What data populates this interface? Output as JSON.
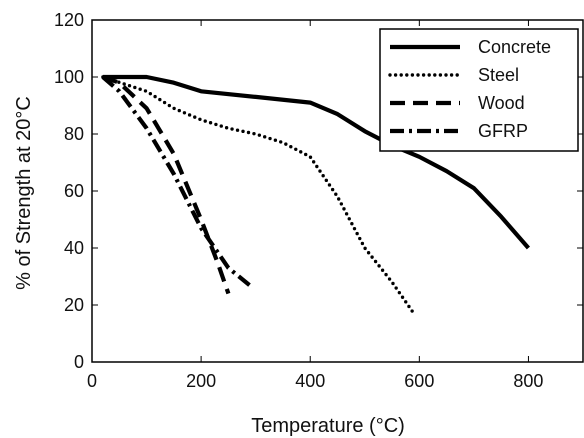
{
  "chart_data": {
    "type": "line",
    "title": "",
    "xlabel": "Temperature (°C)",
    "ylabel": "% of Strength at 20°C",
    "xlim": [
      0,
      900
    ],
    "ylim": [
      0,
      120
    ],
    "x_ticks": [
      0,
      200,
      400,
      600,
      800
    ],
    "y_ticks": [
      0,
      20,
      40,
      60,
      80,
      100,
      120
    ],
    "x_tick_labels": [
      "0",
      "200",
      "400",
      "600",
      "800"
    ],
    "y_tick_labels": [
      "0",
      "20",
      "40",
      "60",
      "80",
      "100",
      "120"
    ],
    "grid": false,
    "legend_position": "top-right",
    "series": [
      {
        "name": "Concrete",
        "style": "solid",
        "color": "#000000",
        "points": [
          [
            20,
            100
          ],
          [
            100,
            100
          ],
          [
            150,
            98
          ],
          [
            200,
            95
          ],
          [
            300,
            93
          ],
          [
            400,
            91
          ],
          [
            450,
            87
          ],
          [
            500,
            81
          ],
          [
            550,
            76
          ],
          [
            600,
            72
          ],
          [
            650,
            67
          ],
          [
            700,
            61
          ],
          [
            750,
            51
          ],
          [
            800,
            40
          ]
        ]
      },
      {
        "name": "Steel",
        "style": "dotted",
        "color": "#000000",
        "points": [
          [
            20,
            100
          ],
          [
            100,
            95
          ],
          [
            150,
            89
          ],
          [
            200,
            85
          ],
          [
            250,
            82
          ],
          [
            300,
            80
          ],
          [
            350,
            77
          ],
          [
            400,
            72
          ],
          [
            450,
            58
          ],
          [
            500,
            40
          ],
          [
            550,
            28
          ],
          [
            590,
            17
          ]
        ]
      },
      {
        "name": "Wood",
        "style": "dashed",
        "color": "#000000",
        "points": [
          [
            20,
            100
          ],
          [
            50,
            98
          ],
          [
            100,
            89
          ],
          [
            150,
            73
          ],
          [
            200,
            50
          ],
          [
            230,
            35
          ],
          [
            250,
            24
          ]
        ]
      },
      {
        "name": "GFRP",
        "style": "dashdot",
        "color": "#000000",
        "points": [
          [
            20,
            100
          ],
          [
            50,
            95
          ],
          [
            100,
            82
          ],
          [
            150,
            66
          ],
          [
            200,
            47
          ],
          [
            250,
            33
          ],
          [
            295,
            26
          ]
        ]
      }
    ]
  }
}
